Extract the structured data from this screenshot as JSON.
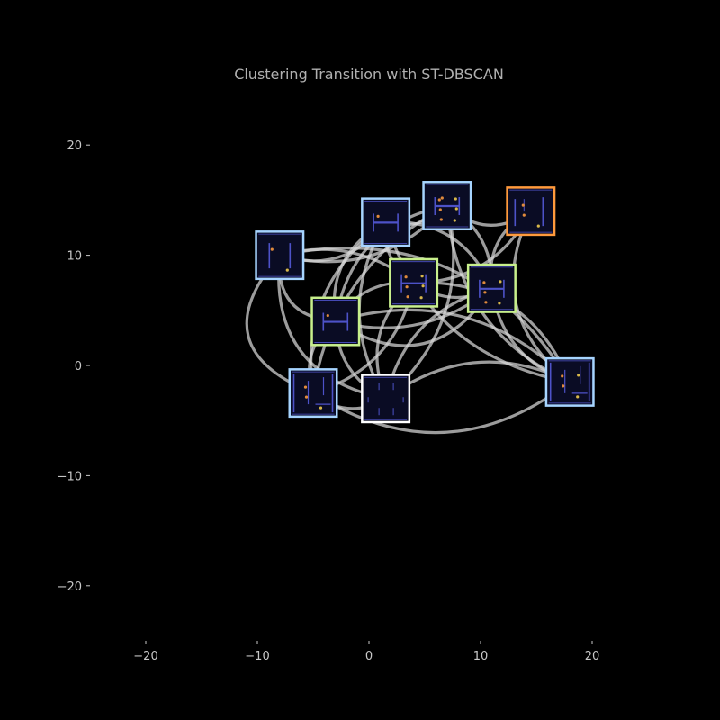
{
  "chart_data": {
    "type": "network",
    "title": "Clustering Transition with ST-DBSCAN",
    "xlabel": "",
    "ylabel": "",
    "xlim": [
      -25,
      25
    ],
    "ylim": [
      -25,
      25
    ],
    "xticks": [
      -20,
      -10,
      0,
      10,
      20
    ],
    "yticks": [
      -20,
      -10,
      0,
      10,
      20
    ],
    "grid": false,
    "background": "#000000",
    "node_style": "maze-thumbnail",
    "nodes": [
      {
        "id": "n1",
        "x": -8,
        "y": 10,
        "cluster_color": "#a6d4ff",
        "layout": "two-bars",
        "pellets": 2
      },
      {
        "id": "n2",
        "x": 1.5,
        "y": 13,
        "cluster_color": "#a6d4ff",
        "layout": "h-frame",
        "pellets": 1
      },
      {
        "id": "n3",
        "x": 7,
        "y": 14.5,
        "cluster_color": "#a6d4ff",
        "layout": "h-frame",
        "pellets": 7
      },
      {
        "id": "n4",
        "x": 14.5,
        "y": 14,
        "cluster_color": "#ff9a3c",
        "layout": "three-bars",
        "pellets": 3
      },
      {
        "id": "n5",
        "x": 4,
        "y": 7.5,
        "cluster_color": "#c8f08c",
        "layout": "h-frame",
        "pellets": 6
      },
      {
        "id": "n6",
        "x": 11,
        "y": 7,
        "cluster_color": "#c8f08c",
        "layout": "h-frame",
        "pellets": 5
      },
      {
        "id": "n7",
        "x": -3,
        "y": 4,
        "cluster_color": "#c8f08c",
        "layout": "h-frame",
        "pellets": 1
      },
      {
        "id": "n8",
        "x": -5,
        "y": -2.5,
        "cluster_color": "#a6d4ff",
        "layout": "corridor",
        "pellets": 3
      },
      {
        "id": "n9",
        "x": 1.5,
        "y": -3,
        "cluster_color": "#ffffff",
        "layout": "dashes",
        "pellets": 0
      },
      {
        "id": "n10",
        "x": 18,
        "y": -1.5,
        "cluster_color": "#a6d4ff",
        "layout": "corridor",
        "pellets": 4
      }
    ],
    "edges": [
      {
        "from": "n1",
        "to": "n2",
        "bend": 0.35
      },
      {
        "from": "n1",
        "to": "n3",
        "bend": 0.3
      },
      {
        "from": "n1",
        "to": "n5",
        "bend": -0.25
      },
      {
        "from": "n1",
        "to": "n8",
        "bend": 0.7
      },
      {
        "from": "n1",
        "to": "n10",
        "bend": -0.35
      },
      {
        "from": "n1",
        "to": "n9",
        "bend": 0.45
      },
      {
        "from": "n2",
        "to": "n3",
        "bend": 0.3
      },
      {
        "from": "n2",
        "to": "n5",
        "bend": 0.3
      },
      {
        "from": "n2",
        "to": "n7",
        "bend": 0.35
      },
      {
        "from": "n2",
        "to": "n9",
        "bend": 0.3
      },
      {
        "from": "n2",
        "to": "n10",
        "bend": 0.3
      },
      {
        "from": "n2",
        "to": "n6",
        "bend": -0.35
      },
      {
        "from": "n3",
        "to": "n4",
        "bend": 0.4
      },
      {
        "from": "n3",
        "to": "n7",
        "bend": 0.35
      },
      {
        "from": "n3",
        "to": "n6",
        "bend": -0.3
      },
      {
        "from": "n3",
        "to": "n9",
        "bend": -0.3
      },
      {
        "from": "n3",
        "to": "n8",
        "bend": 0.25
      },
      {
        "from": "n3",
        "to": "n10",
        "bend": 0.3
      },
      {
        "from": "n4",
        "to": "n6",
        "bend": 0.35
      },
      {
        "from": "n4",
        "to": "n10",
        "bend": 0.4
      },
      {
        "from": "n4",
        "to": "n5",
        "bend": -0.3
      },
      {
        "from": "n5",
        "to": "n6",
        "bend": 0.3
      },
      {
        "from": "n5",
        "to": "n7",
        "bend": 0.3
      },
      {
        "from": "n5",
        "to": "n9",
        "bend": 0.35
      },
      {
        "from": "n5",
        "to": "n8",
        "bend": -0.3
      },
      {
        "from": "n5",
        "to": "n10",
        "bend": -0.35
      },
      {
        "from": "n6",
        "to": "n10",
        "bend": 0.3
      },
      {
        "from": "n6",
        "to": "n9",
        "bend": 0.3
      },
      {
        "from": "n6",
        "to": "n7",
        "bend": -0.25
      },
      {
        "from": "n7",
        "to": "n8",
        "bend": 0.35
      },
      {
        "from": "n7",
        "to": "n9",
        "bend": 0.3
      },
      {
        "from": "n7",
        "to": "n10",
        "bend": -0.3
      },
      {
        "from": "n8",
        "to": "n9",
        "bend": 0.35
      },
      {
        "from": "n8",
        "to": "n10",
        "bend": 0.35
      },
      {
        "from": "n9",
        "to": "n10",
        "bend": -0.3
      },
      {
        "from": "n1",
        "to": "n7",
        "bend": 0.5
      },
      {
        "from": "n7",
        "to": "n6",
        "bend": 0.5
      },
      {
        "from": "n8",
        "to": "n2",
        "bend": -0.3
      }
    ]
  }
}
